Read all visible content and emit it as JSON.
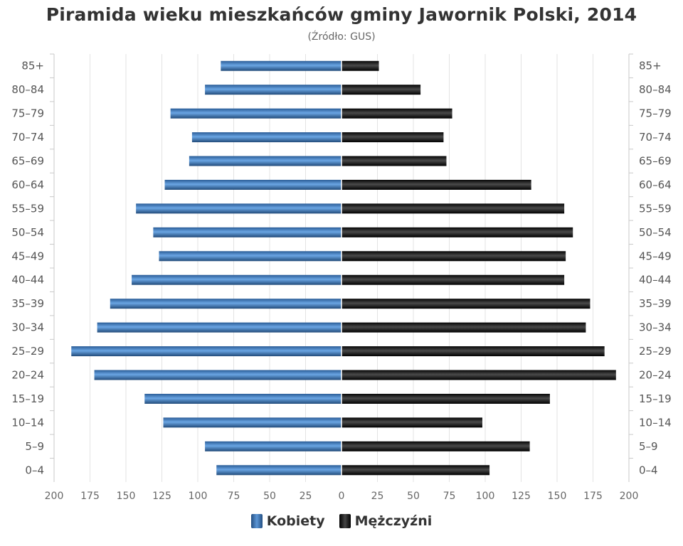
{
  "chart_data": {
    "type": "bar",
    "orientation": "horizontal-pyramid",
    "title": "Piramida wieku mieszkańców gminy Jawornik Polski, 2014",
    "subtitle": "(Źródło: GUS)",
    "categories": [
      "0–4",
      "5–9",
      "10–14",
      "15–19",
      "20–24",
      "25–29",
      "30–34",
      "35–39",
      "40–44",
      "45–49",
      "50–54",
      "55–59",
      "60–64",
      "65–69",
      "70–74",
      "75–79",
      "80–84",
      "85+"
    ],
    "series": [
      {
        "name": "Kobiety",
        "side": "left",
        "color": "#4a86c8",
        "values": [
          87,
          95,
          124,
          137,
          172,
          188,
          170,
          161,
          146,
          127,
          131,
          143,
          123,
          106,
          104,
          119,
          95,
          84
        ]
      },
      {
        "name": "Mężczyźni",
        "side": "right",
        "color": "#1a1a1a",
        "values": [
          103,
          131,
          98,
          145,
          191,
          183,
          170,
          173,
          155,
          156,
          161,
          155,
          132,
          73,
          71,
          77,
          55,
          26
        ]
      }
    ],
    "x_ticks": [
      "200",
      "175",
      "150",
      "125",
      "100",
      "75",
      "50",
      "25",
      "0",
      "25",
      "50",
      "75",
      "100",
      "125",
      "150",
      "175",
      "200"
    ],
    "xlim": [
      -200,
      200
    ],
    "grid": true,
    "legend_position": "bottom"
  }
}
